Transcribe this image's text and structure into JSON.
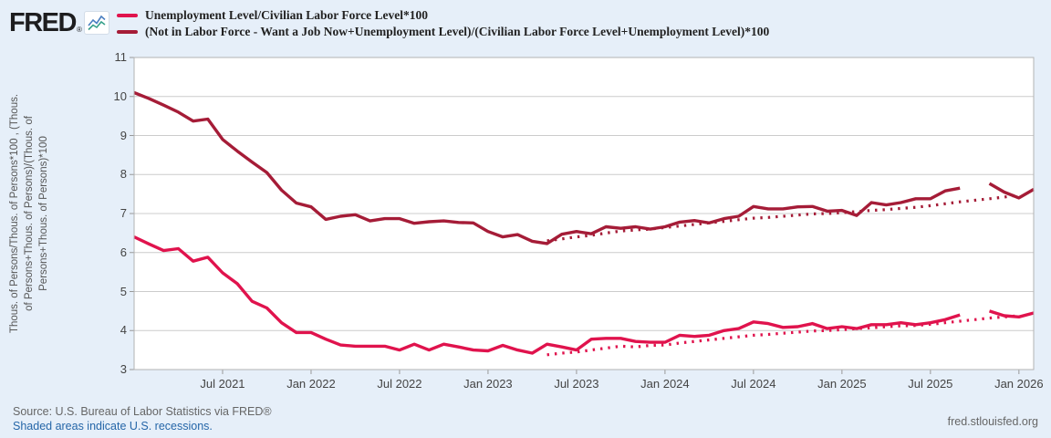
{
  "header": {
    "logo_text": "FRED",
    "logo_reg": "®",
    "logo_icon": "line-chart-zigzag"
  },
  "footer": {
    "source": "Source: U.S. Bureau of Labor Statistics via FRED®",
    "recession_note": "Shaded areas indicate U.S. recessions.",
    "url": "fred.stlouisfed.org"
  },
  "chart_data": {
    "type": "line",
    "title": "",
    "y_axis_title_full": "Thous. of Persons/Thous. of Persons*100 , (Thous. of Persons+Thous. of Persons)/(Thous. of Persons+Thous. of Persons)*100",
    "y_axis_title_lines": [
      "Thous. of Persons/Thous. of Persons*100 , (Thous.",
      "of Persons+Thous. of Persons)/(Thous. of",
      "Persons+Thous. of Persons)*100"
    ],
    "x_start_month": "2021-01",
    "x_end_month": "2026-02",
    "months_span": 61,
    "missing_data_month": "2025-10",
    "x_ticks": [
      {
        "m": 6,
        "label": "Jul 2021"
      },
      {
        "m": 12,
        "label": "Jan 2022"
      },
      {
        "m": 18,
        "label": "Jul 2022"
      },
      {
        "m": 24,
        "label": "Jan 2023"
      },
      {
        "m": 30,
        "label": "Jul 2023"
      },
      {
        "m": 36,
        "label": "Jan 2024"
      },
      {
        "m": 42,
        "label": "Jul 2024"
      },
      {
        "m": 48,
        "label": "Jan 2025"
      },
      {
        "m": 54,
        "label": "Jul 2025"
      },
      {
        "m": 60,
        "label": "Jan 2026"
      }
    ],
    "ylim": [
      3,
      11
    ],
    "y_ticks": [
      3,
      4,
      5,
      6,
      7,
      8,
      9,
      10,
      11
    ],
    "grid": "horizontal",
    "legend_position": "top-left",
    "colors": {
      "series1_pink": "#e0134d",
      "series2_darkred": "#a51c37",
      "gridline": "#cccccc",
      "plot_border": "#b3b3b3",
      "plot_background": "#ffffff",
      "page_background": "#e6eff9"
    },
    "series": [
      {
        "name": "Unemployment Level/Civilian Labor Force Level*100",
        "color": "#e0134d",
        "style": "solid",
        "start_index": 0,
        "values": [
          6.4,
          6.22,
          6.05,
          6.1,
          5.78,
          5.88,
          5.48,
          5.2,
          4.75,
          4.58,
          4.2,
          3.95,
          3.95,
          3.78,
          3.63,
          3.6,
          3.6,
          3.6,
          3.5,
          3.65,
          3.5,
          3.65,
          3.58,
          3.5,
          3.48,
          3.62,
          3.5,
          3.42,
          3.65,
          3.58,
          3.5,
          3.78,
          3.8,
          3.8,
          3.72,
          3.7,
          3.7,
          3.88,
          3.85,
          3.88,
          4.0,
          4.05,
          4.22,
          4.18,
          4.08,
          4.1,
          4.18,
          4.05,
          4.1,
          4.05,
          4.15,
          4.15,
          4.2,
          4.15,
          4.2,
          4.28,
          4.4,
          null,
          4.5,
          4.38,
          4.35,
          4.45
        ]
      },
      {
        "name": "(Not in Labor Force - Want a Job Now+Unemployment Level)/(Civilian Labor Force Level+Unemployment Level)*100",
        "color": "#a51c37",
        "style": "solid",
        "start_index": 0,
        "values": [
          10.1,
          9.95,
          9.78,
          9.6,
          9.37,
          9.42,
          8.9,
          8.6,
          8.32,
          8.05,
          7.6,
          7.27,
          7.17,
          6.85,
          6.93,
          6.97,
          6.81,
          6.87,
          6.87,
          6.75,
          6.79,
          6.81,
          6.77,
          6.76,
          6.54,
          6.4,
          6.46,
          6.29,
          6.23,
          6.47,
          6.54,
          6.48,
          6.66,
          6.62,
          6.66,
          6.6,
          6.66,
          6.78,
          6.82,
          6.76,
          6.87,
          6.93,
          7.18,
          7.12,
          7.12,
          7.17,
          7.18,
          7.06,
          7.08,
          6.95,
          7.28,
          7.22,
          7.28,
          7.38,
          7.38,
          7.58,
          7.65,
          null,
          7.77,
          7.55,
          7.4,
          7.62
        ]
      },
      {
        "name": "Unemployment Level/Civilian Labor Force Level*100",
        "color": "#e0134d",
        "style": "dotted",
        "start_index": 28,
        "values": [
          3.38,
          3.42,
          3.45,
          3.5,
          3.55,
          3.6,
          3.58,
          3.62,
          3.63,
          3.68,
          3.72,
          3.76,
          3.8,
          3.84,
          3.88,
          3.9,
          3.93,
          3.96,
          3.99,
          4.0,
          4.02,
          4.05,
          4.07,
          4.1,
          4.12,
          4.13,
          4.16,
          4.2,
          4.24,
          4.28,
          4.32,
          4.35,
          4.38
        ]
      },
      {
        "name": "(Not in Labor Force - Want a Job Now+Unemployment Level)/(Civilian Labor Force Level+Unemployment Level)*100",
        "color": "#a51c37",
        "style": "dotted",
        "start_index": 28,
        "values": [
          6.3,
          6.35,
          6.4,
          6.44,
          6.5,
          6.55,
          6.58,
          6.6,
          6.64,
          6.68,
          6.72,
          6.76,
          6.8,
          6.84,
          6.88,
          6.9,
          6.93,
          6.96,
          6.99,
          7.0,
          7.02,
          7.05,
          7.08,
          7.1,
          7.13,
          7.16,
          7.2,
          7.25,
          7.3,
          7.34,
          7.38,
          7.42,
          7.48
        ]
      }
    ]
  }
}
